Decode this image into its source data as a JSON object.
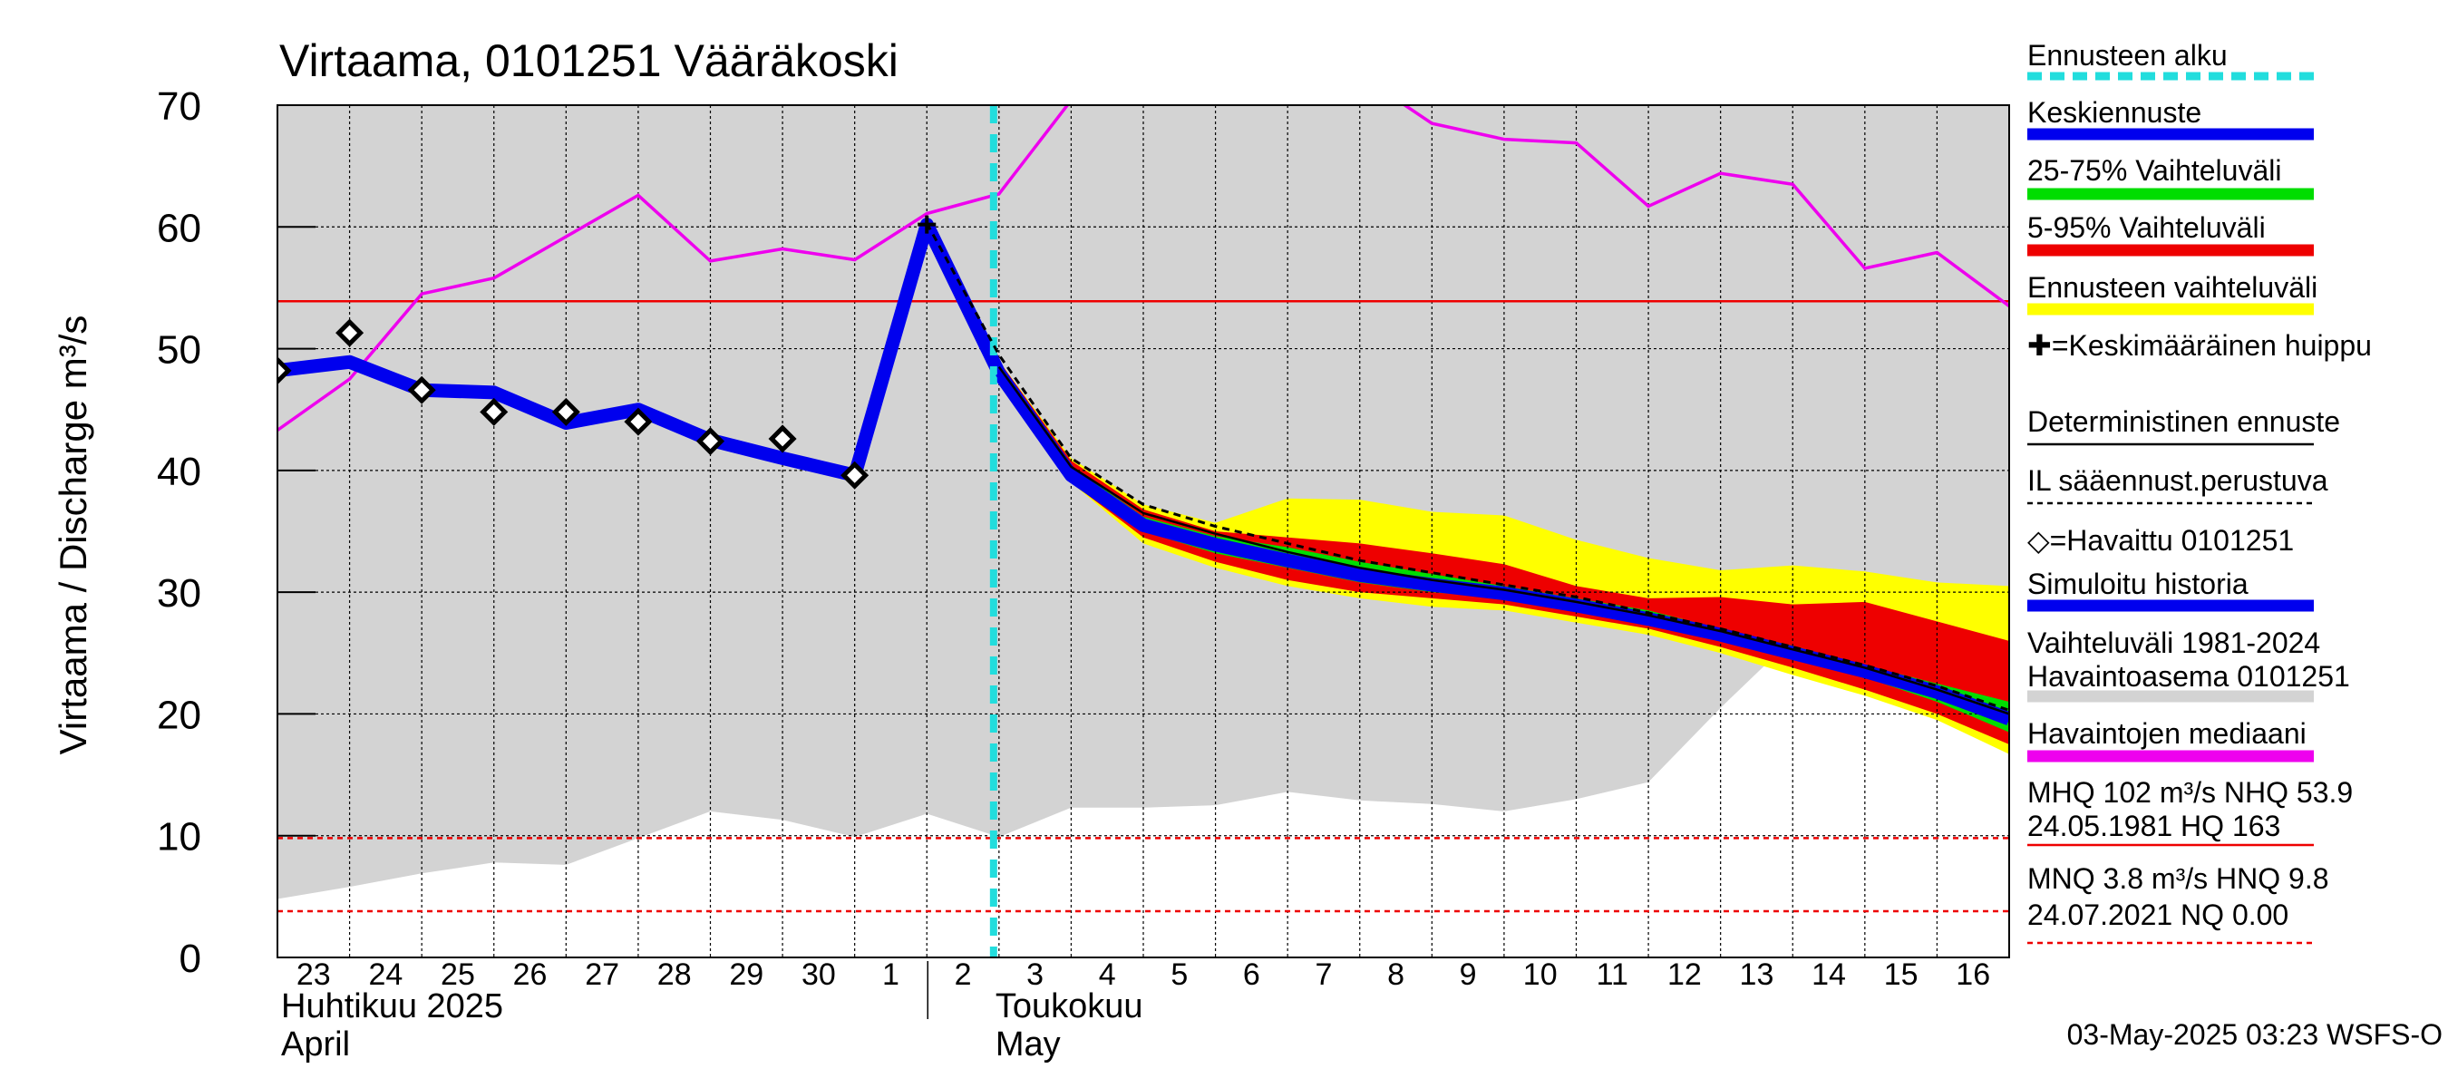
{
  "chart_data": {
    "type": "line",
    "title": "Virtaama, 0101251 Vääräkoski",
    "ylabel": "Virtaama / Discharge   m³/s",
    "ylim": [
      0,
      70
    ],
    "yticks": [
      0,
      10,
      20,
      30,
      40,
      50,
      60,
      70
    ],
    "xlim": [
      0,
      24
    ],
    "day_labels": [
      "23",
      "24",
      "25",
      "26",
      "27",
      "28",
      "29",
      "30",
      "1",
      "2",
      "3",
      "4",
      "5",
      "6",
      "7",
      "8",
      "9",
      "10",
      "11",
      "12",
      "13",
      "14",
      "15",
      "16"
    ],
    "month_labels": [
      {
        "fi": "Huhtikuu  2025",
        "en": "April",
        "at": 0
      },
      {
        "fi": "Toukokuu",
        "en": "May",
        "at": 9
      }
    ],
    "forecast_start": 10,
    "colors": {
      "forecast_start": "#22dddd",
      "mean_forecast": "#0000ee",
      "p25_75": "#00dd00",
      "p5_95": "#ee0000",
      "forecast_range": "#ffff00",
      "deterministic": "#000000",
      "il_forecast": "#000000",
      "observed": "#000000",
      "simulated": "#0000ee",
      "history_range": "#d3d3d3",
      "median": "#ee00ee",
      "mhq_nhq": "#ee0000",
      "mnq_hnq": "#ee0000"
    },
    "history_range": {
      "x": [
        0,
        1,
        2,
        3,
        4,
        5,
        6,
        7,
        8,
        9,
        10,
        11,
        12,
        13,
        14,
        15,
        16,
        17,
        18,
        19,
        20,
        21,
        22,
        23,
        24
      ],
      "low": [
        4.8,
        5.8,
        6.9,
        7.8,
        7.6,
        9.8,
        12.0,
        11.3,
        9.9,
        11.8,
        9.9,
        12.3,
        12.3,
        12.5,
        13.6,
        12.9,
        12.6,
        12.0,
        13.0,
        14.4,
        20.5,
        26.2,
        24.3,
        24.4,
        27.5
      ],
      "high": [
        70,
        70,
        70,
        70,
        70,
        70,
        70,
        70,
        70,
        70,
        70,
        70,
        70,
        70,
        70,
        70,
        70,
        70,
        70,
        70,
        70,
        70,
        70,
        70,
        70
      ]
    },
    "median_line": {
      "x": [
        0,
        1,
        2,
        3,
        4,
        5,
        6,
        7,
        8,
        9,
        10,
        11,
        11.15,
        15.5,
        16,
        17,
        18,
        19,
        20,
        21,
        22,
        23,
        24
      ],
      "y": [
        43.3,
        47.5,
        54.5,
        55.8,
        59.2,
        62.6,
        57.2,
        58.2,
        57.3,
        61.1,
        62.7,
        70.4,
        70.5,
        70.5,
        68.5,
        67.2,
        66.9,
        61.7,
        64.4,
        63.5,
        56.6,
        57.9,
        53.5
      ]
    },
    "forecast_range": {
      "x": [
        10,
        11,
        12,
        13,
        14,
        15,
        16,
        17,
        18,
        19,
        20,
        21,
        22,
        23,
        24
      ],
      "low": [
        48,
        39,
        34,
        32,
        30.5,
        29.5,
        28.8,
        28.5,
        27.5,
        26.5,
        25,
        23.2,
        21.5,
        19.5,
        16.7
      ],
      "high": [
        49,
        41,
        37.2,
        35.7,
        37.7,
        37.6,
        36.6,
        36.3,
        34.3,
        32.8,
        31.8,
        32.2,
        31.7,
        30.8,
        30.5
      ]
    },
    "p5_95": {
      "x": [
        10,
        11,
        12,
        13,
        14,
        15,
        16,
        17,
        18,
        19,
        20,
        21,
        22,
        23,
        24
      ],
      "low": [
        48,
        39,
        34.5,
        32.5,
        31,
        30,
        29.5,
        29,
        28,
        27,
        25.5,
        23.8,
        22,
        20,
        17.5
      ],
      "high": [
        49,
        40.8,
        36.8,
        35,
        34.5,
        34,
        33.2,
        32.3,
        30.5,
        29.5,
        29.6,
        29,
        29.2,
        27.6,
        26
      ]
    },
    "p25_75": {
      "x": [
        10,
        11,
        12,
        13,
        14,
        15,
        16,
        17,
        18,
        19,
        20,
        21,
        22,
        23,
        24
      ],
      "low": [
        48,
        39.3,
        35,
        33.2,
        32,
        30.8,
        30,
        29.5,
        28.5,
        27.3,
        26,
        24.5,
        23,
        21,
        18.5
      ],
      "high": [
        48.6,
        40.4,
        36.2,
        34.6,
        33.7,
        32.5,
        31.5,
        30.5,
        29.5,
        28.5,
        27,
        25.6,
        24,
        22.5,
        21
      ]
    },
    "mean_forecast": {
      "x": [
        10,
        11,
        12,
        13,
        14,
        15,
        16,
        17,
        18,
        19,
        20,
        21,
        22,
        23,
        24
      ],
      "y": [
        48,
        39.6,
        35.5,
        33.9,
        32.6,
        31.4,
        30.6,
        29.9,
        28.9,
        27.8,
        26.5,
        25,
        23.5,
        21.8,
        19.6
      ]
    },
    "deterministic": {
      "x": [
        10,
        11,
        12,
        13,
        14,
        15,
        16,
        17,
        18,
        19,
        20,
        21,
        22,
        23,
        24
      ],
      "y": [
        48.5,
        40.3,
        36.5,
        34.8,
        33.3,
        32,
        31,
        30.2,
        29.2,
        28.1,
        26.8,
        25.3,
        23.8,
        22,
        20
      ]
    },
    "il_forecast": {
      "x": [
        9,
        10,
        11,
        12,
        13,
        14,
        15,
        16,
        17,
        18,
        19,
        20,
        21,
        22,
        23,
        24
      ],
      "y": [
        60.3,
        49.5,
        41,
        37.2,
        35.4,
        34,
        32.6,
        31.6,
        30.6,
        29.6,
        28.3,
        27,
        25.5,
        24,
        22.3,
        20.3
      ]
    },
    "simulated": {
      "x": [
        0,
        1,
        2,
        3,
        4,
        5,
        6,
        7,
        8,
        9,
        10,
        11,
        12,
        13,
        14,
        15,
        16,
        17,
        18,
        19,
        20,
        21,
        22,
        23,
        24
      ],
      "y": [
        48.2,
        48.9,
        46.6,
        46.4,
        43.9,
        45.0,
        42.5,
        41.0,
        39.6,
        60.2,
        48.0,
        39.6,
        35.5,
        33.9,
        32.6,
        31.4,
        30.6,
        29.9,
        28.9,
        27.8,
        26.5,
        25.0,
        23.5,
        21.8,
        19.6
      ]
    },
    "observed": {
      "x": [
        0,
        1,
        2,
        3,
        4,
        5,
        6,
        7,
        8
      ],
      "y": [
        48.2,
        51.3,
        46.6,
        44.8,
        44.8,
        44.0,
        42.4,
        42.6,
        39.6
      ]
    },
    "mean_peak": {
      "x": 9,
      "y": 60.2
    },
    "reference_lines": [
      53.9,
      9.8,
      3.8
    ],
    "legend": [
      {
        "key": "forecast_start",
        "label": "Ennusteen alku",
        "style": "dash-thick"
      },
      {
        "key": "mean_forecast",
        "label": "Keskiennuste",
        "style": "thick"
      },
      {
        "key": "p25_75",
        "label": "25-75% Vaihteluväli",
        "style": "thick"
      },
      {
        "key": "p5_95",
        "label": "5-95% Vaihteluväli",
        "style": "thick"
      },
      {
        "key": "forecast_range",
        "label": "Ennusteen vaihteluväli",
        "style": "thick"
      },
      {
        "key": "mean_peak",
        "label": "✚=Keskimääräinen huippu",
        "style": "none"
      },
      {
        "key": "deterministic",
        "label": "Deterministinen ennuste",
        "style": "thin"
      },
      {
        "key": "il_forecast",
        "label": "IL sääennust.perustuva",
        "style": "dash-thin"
      },
      {
        "key": "observed",
        "label": "◇=Havaittu 0101251",
        "style": "none"
      },
      {
        "key": "simulated",
        "label": "Simuloitu historia",
        "style": "thick"
      },
      {
        "key": "history_range",
        "label": "Vaihteluväli 1981-2024\n Havaintoasema 0101251",
        "style": "thick"
      },
      {
        "key": "median",
        "label": "Havaintojen mediaani",
        "style": "thick"
      },
      {
        "key": "mhq_nhq",
        "label": "MHQ  102 m³/s NHQ 53.9\n24.05.1981 HQ  163",
        "style": "thin"
      },
      {
        "key": "mnq_hnq",
        "label": "MNQ  3.8 m³/s HNQ  9.8\n24.07.2021 NQ 0.00",
        "style": "dash-thin"
      }
    ],
    "timestamp": "03-May-2025 03:23 WSFS-O"
  }
}
